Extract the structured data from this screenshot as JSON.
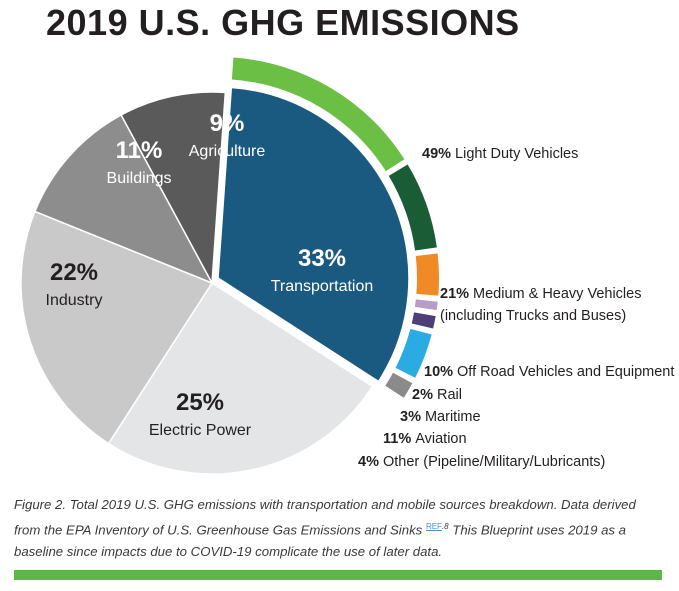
{
  "title": "2019 U.S. GHG EMISSIONS",
  "caption": {
    "text": "Figure 2. Total 2019 U.S. GHG emissions with transportation and mobile sources breakdown. Data derived from the EPA Inventory of U.S. Greenhouse Gas Emissions and Sinks",
    "ref": "REF",
    "sup": ".8",
    "text2": " This Blueprint uses 2019 as a baseline since impacts due to COVID-19 complicate the use of later data."
  },
  "chart_data": [
    {
      "type": "pie",
      "slices": [
        {
          "label": "Transportation",
          "pct": "33%",
          "value": 33,
          "color": "#1b5a80"
        },
        {
          "label": "Electric Power",
          "pct": "25%",
          "value": 25,
          "color": "#e4e5e6"
        },
        {
          "label": "Industry",
          "pct": "22%",
          "value": 22,
          "color": "#c9c9c9"
        },
        {
          "label": "Buildings",
          "pct": "11%",
          "value": 11,
          "color": "#8d8d8d"
        },
        {
          "label": "Agriculture",
          "pct": "9%",
          "value": 9,
          "color": "#5a5a5a"
        }
      ]
    },
    {
      "type": "pie",
      "breakdown_of": "Transportation",
      "slices": [
        {
          "pct": "49%",
          "label": "Light Duty Vehicles",
          "value": 49,
          "color": "#6abf44"
        },
        {
          "pct": "21%",
          "label": "Medium & Heavy Vehicles",
          "label2": "(including Trucks and Buses)",
          "value": 21,
          "color": "#1a5c35"
        },
        {
          "pct": "10%",
          "label": "Off Road Vehicles and Equipment",
          "value": 10,
          "color": "#f08a24"
        },
        {
          "pct": "2%",
          "label": "Rail",
          "value": 2,
          "color": "#b99bc7"
        },
        {
          "pct": "3%",
          "label": "Maritime",
          "value": 3,
          "color": "#4d3f78"
        },
        {
          "pct": "11%",
          "label": "Aviation",
          "value": 11,
          "color": "#2aace2"
        },
        {
          "pct": "4%",
          "label": "Other (Pipeline/Military/Lubricants)",
          "value": 4,
          "color": "#8a8a8a"
        }
      ]
    }
  ]
}
